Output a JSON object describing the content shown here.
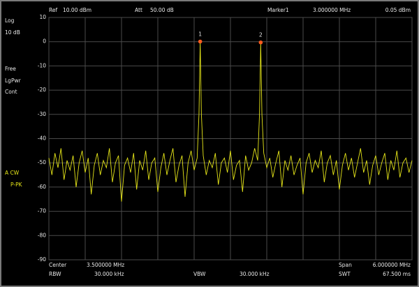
{
  "status": {
    "ref_label": "Ref",
    "ref_value": "10.00 dBm",
    "att_label": "Att",
    "att_value": "50.00 dB",
    "marker_label": "Marker1",
    "marker_freq": "3.000000 MHz",
    "marker_level": "0.05 dBm"
  },
  "side": {
    "scale_type": "Log",
    "scale_div": "10 dB",
    "trigger": "Free",
    "mode": "LgPwr",
    "sweep": "Cont",
    "trace": "A CW",
    "detector": "P-PK"
  },
  "footer": {
    "center_label": "Center",
    "center_value": "3.500000 MHz",
    "span_label": "Span",
    "span_value": "6.000000 MHz",
    "rbw_label": "RBW",
    "rbw_value": "30.000 kHz",
    "vbw_label": "VBW",
    "vbw_value": "30.000 kHz",
    "swt_label": "SWT",
    "swt_value": "67.500 ms"
  },
  "chart_data": {
    "type": "line",
    "x": [
      0.5,
      0.55,
      0.6,
      0.65,
      0.7,
      0.75,
      0.8,
      0.85,
      0.9,
      0.95,
      1.0,
      1.05,
      1.1,
      1.15,
      1.2,
      1.25,
      1.3,
      1.35,
      1.4,
      1.45,
      1.5,
      1.55,
      1.6,
      1.65,
      1.7,
      1.75,
      1.8,
      1.85,
      1.9,
      1.95,
      2.0,
      2.05,
      2.1,
      2.15,
      2.2,
      2.25,
      2.3,
      2.35,
      2.4,
      2.45,
      2.5,
      2.55,
      2.6,
      2.65,
      2.7,
      2.75,
      2.8,
      2.85,
      2.9,
      2.95,
      2.98,
      3.0,
      3.02,
      3.05,
      3.1,
      3.15,
      3.2,
      3.25,
      3.3,
      3.35,
      3.4,
      3.45,
      3.5,
      3.55,
      3.6,
      3.65,
      3.7,
      3.75,
      3.8,
      3.85,
      3.9,
      3.95,
      3.98,
      4.0,
      4.02,
      4.05,
      4.1,
      4.15,
      4.2,
      4.25,
      4.3,
      4.35,
      4.4,
      4.45,
      4.5,
      4.55,
      4.6,
      4.65,
      4.7,
      4.75,
      4.8,
      4.85,
      4.9,
      4.95,
      5.0,
      5.05,
      5.1,
      5.15,
      5.2,
      5.25,
      5.3,
      5.35,
      5.4,
      5.45,
      5.5,
      5.55,
      5.6,
      5.65,
      5.7,
      5.75,
      5.8,
      5.85,
      5.9,
      5.95,
      6.0,
      6.05,
      6.1,
      6.15,
      6.2,
      6.25,
      6.3,
      6.35,
      6.4,
      6.45,
      6.5
    ],
    "series": [
      {
        "color": "#e6e619",
        "values": [
          -48,
          -55,
          -46,
          -52,
          -44,
          -57,
          -49,
          -53,
          -47,
          -60,
          -50,
          -45,
          -54,
          -48,
          -63,
          -51,
          -46,
          -55,
          -49,
          -52,
          -44,
          -58,
          -50,
          -47,
          -66,
          -51,
          -48,
          -54,
          -46,
          -61,
          -49,
          -53,
          -45,
          -57,
          -50,
          -48,
          -62,
          -52,
          -46,
          -55,
          -49,
          -44,
          -58,
          -51,
          -47,
          -64,
          -50,
          -45,
          -53,
          -48,
          -30,
          0.05,
          -30,
          -47,
          -55,
          -49,
          -52,
          -46,
          -59,
          -50,
          -48,
          -54,
          -45,
          -57,
          -51,
          -49,
          -62,
          -47,
          -53,
          -50,
          -44,
          -49,
          -30,
          -0.3,
          -30,
          -46,
          -52,
          -48,
          -56,
          -50,
          -45,
          -60,
          -49,
          -53,
          -47,
          -55,
          -51,
          -48,
          -63,
          -50,
          -46,
          -54,
          -49,
          -52,
          -45,
          -58,
          -50,
          -47,
          -55,
          -49,
          -61,
          -51,
          -46,
          -53,
          -48,
          -56,
          -50,
          -44,
          -54,
          -49,
          -59,
          -51,
          -47,
          -55,
          -50,
          -46,
          -57,
          -49,
          -53,
          -45,
          -56,
          -50,
          -48,
          -54,
          -49
        ]
      }
    ],
    "xlim": [
      0.5,
      6.5
    ],
    "xticks": [
      0.5,
      1.1,
      1.7,
      2.3,
      2.9,
      3.5,
      4.1,
      4.7,
      5.3,
      5.9,
      6.5
    ],
    "ylim": [
      -90,
      10
    ],
    "yticks": [
      10,
      0,
      -10,
      -20,
      -30,
      -40,
      -50,
      -60,
      -70,
      -80,
      -90
    ],
    "grid": true,
    "markers": [
      {
        "label": "1",
        "x": 3.0,
        "y": 0.05,
        "color": "#ff5a1e"
      },
      {
        "label": "2",
        "x": 4.0,
        "y": -0.3,
        "color": "#ff5a1e"
      }
    ]
  }
}
